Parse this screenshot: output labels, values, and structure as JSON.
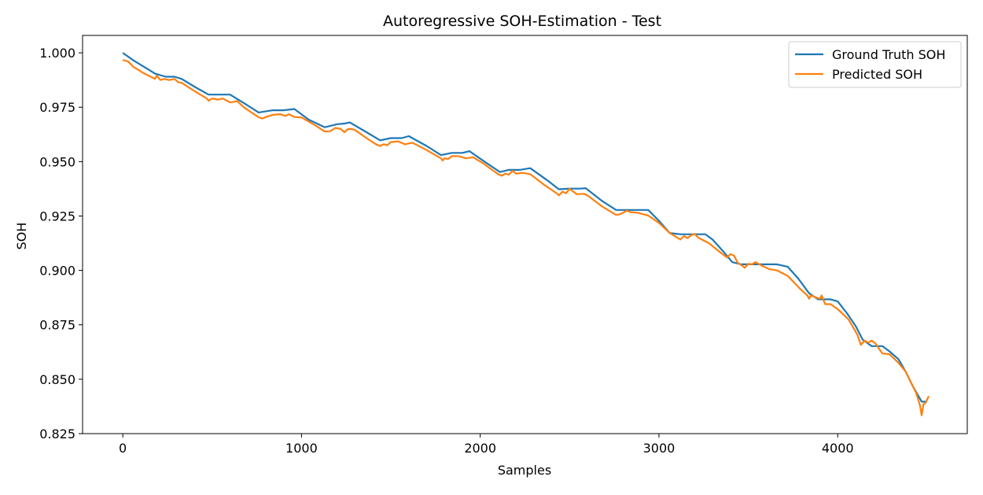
{
  "chart_data": {
    "type": "line",
    "title": "Autoregressive SOH-Estimation - Test",
    "xlabel": "Samples",
    "ylabel": "SOH",
    "xlim": [
      -225,
      4725
    ],
    "ylim": [
      0.825,
      1.008
    ],
    "xticks": [
      0,
      1000,
      2000,
      3000,
      4000
    ],
    "xtick_labels": [
      "0",
      "1000",
      "2000",
      "3000",
      "4000"
    ],
    "yticks": [
      0.825,
      0.85,
      0.875,
      0.9,
      0.925,
      0.95,
      0.975,
      1.0
    ],
    "ytick_labels": [
      "0.825",
      "0.850",
      "0.875",
      "0.900",
      "0.925",
      "0.950",
      "0.975",
      "1.000"
    ],
    "grid": false,
    "legend_position": "upper right",
    "series": [
      {
        "name": "Ground Truth SOH",
        "color": "#1f77b4",
        "x": [
          0,
          60,
          120,
          180,
          240,
          290,
          330,
          400,
          480,
          530,
          600,
          680,
          760,
          840,
          900,
          960,
          1040,
          1130,
          1200,
          1240,
          1270,
          1360,
          1440,
          1500,
          1560,
          1600,
          1700,
          1780,
          1840,
          1900,
          1940,
          2020,
          2110,
          2160,
          2220,
          2280,
          2370,
          2440,
          2500,
          2560,
          2590,
          2680,
          2760,
          2820,
          2880,
          2940,
          3000,
          3060,
          3120,
          3180,
          3260,
          3300,
          3360,
          3410,
          3460,
          3520,
          3580,
          3660,
          3720,
          3780,
          3840,
          3890,
          3960,
          4000,
          4050,
          4100,
          4140,
          4190,
          4250,
          4290,
          4340,
          4380,
          4420,
          4470,
          4500
        ],
        "y": [
          1.0,
          0.9965,
          0.9935,
          0.9905,
          0.989,
          0.989,
          0.988,
          0.9845,
          0.9808,
          0.9808,
          0.9808,
          0.9768,
          0.9726,
          0.9736,
          0.9736,
          0.9742,
          0.9693,
          0.9658,
          0.9672,
          0.9675,
          0.968,
          0.9637,
          0.9598,
          0.9608,
          0.9608,
          0.9617,
          0.9572,
          0.953,
          0.954,
          0.954,
          0.9548,
          0.9502,
          0.9452,
          0.9462,
          0.9462,
          0.947,
          0.9417,
          0.9373,
          0.9376,
          0.9376,
          0.9378,
          0.932,
          0.9278,
          0.9278,
          0.9278,
          0.9278,
          0.9228,
          0.9172,
          0.9166,
          0.9166,
          0.9166,
          0.9142,
          0.9087,
          0.9038,
          0.9028,
          0.9028,
          0.9028,
          0.9028,
          0.9017,
          0.8962,
          0.8895,
          0.8867,
          0.8867,
          0.8858,
          0.8805,
          0.8745,
          0.8682,
          0.8652,
          0.8652,
          0.8628,
          0.8592,
          0.8535,
          0.8468,
          0.8397,
          0.8397
        ]
      },
      {
        "name": "Predicted SOH",
        "color": "#ff7f0e",
        "x": [
          0,
          30,
          60,
          120,
          180,
          190,
          210,
          230,
          260,
          290,
          310,
          330,
          400,
          470,
          480,
          500,
          530,
          560,
          600,
          640,
          680,
          760,
          780,
          800,
          840,
          880,
          910,
          930,
          960,
          1000,
          1080,
          1130,
          1160,
          1190,
          1220,
          1240,
          1260,
          1280,
          1300,
          1360,
          1420,
          1440,
          1460,
          1480,
          1500,
          1540,
          1580,
          1620,
          1700,
          1780,
          1790,
          1800,
          1820,
          1840,
          1880,
          1920,
          1960,
          2020,
          2100,
          2120,
          2140,
          2160,
          2180,
          2200,
          2240,
          2280,
          2360,
          2430,
          2440,
          2460,
          2480,
          2500,
          2540,
          2580,
          2600,
          2680,
          2760,
          2780,
          2800,
          2820,
          2840,
          2880,
          2940,
          3000,
          3060,
          3120,
          3140,
          3160,
          3180,
          3200,
          3220,
          3240,
          3280,
          3340,
          3380,
          3400,
          3420,
          3440,
          3460,
          3480,
          3500,
          3520,
          3540,
          3580,
          3620,
          3660,
          3720,
          3790,
          3830,
          3840,
          3850,
          3880,
          3900,
          3910,
          3930,
          3960,
          4000,
          4060,
          4110,
          4130,
          4150,
          4170,
          4190,
          4210,
          4250,
          4290,
          4340,
          4380,
          4410,
          4440,
          4460,
          4470,
          4480,
          4490,
          4510
        ],
        "y": [
          0.9967,
          0.996,
          0.9935,
          0.9905,
          0.988,
          0.9895,
          0.9875,
          0.988,
          0.9875,
          0.988,
          0.9865,
          0.9862,
          0.9825,
          0.979,
          0.978,
          0.979,
          0.9785,
          0.979,
          0.9772,
          0.9778,
          0.9748,
          0.9704,
          0.9698,
          0.9705,
          0.9715,
          0.9718,
          0.971,
          0.9718,
          0.9705,
          0.9703,
          0.9665,
          0.9638,
          0.964,
          0.9655,
          0.965,
          0.9635,
          0.965,
          0.965,
          0.9645,
          0.961,
          0.9578,
          0.9572,
          0.958,
          0.9575,
          0.959,
          0.9593,
          0.958,
          0.9587,
          0.9553,
          0.9515,
          0.9505,
          0.9515,
          0.9512,
          0.9525,
          0.9525,
          0.9515,
          0.952,
          0.949,
          0.9442,
          0.9435,
          0.9445,
          0.944,
          0.9458,
          0.9445,
          0.9448,
          0.9442,
          0.9392,
          0.9353,
          0.9345,
          0.9362,
          0.9355,
          0.9375,
          0.935,
          0.9352,
          0.9345,
          0.9295,
          0.9255,
          0.9258,
          0.9265,
          0.9275,
          0.9268,
          0.9265,
          0.9252,
          0.9218,
          0.9172,
          0.9142,
          0.9158,
          0.9148,
          0.9162,
          0.9168,
          0.915,
          0.9142,
          0.9125,
          0.9085,
          0.906,
          0.9075,
          0.9068,
          0.9035,
          0.9025,
          0.9012,
          0.903,
          0.9028,
          0.9038,
          0.902,
          0.9005,
          0.9,
          0.8975,
          0.8915,
          0.8885,
          0.887,
          0.8885,
          0.8875,
          0.887,
          0.8885,
          0.8845,
          0.8845,
          0.8822,
          0.8775,
          0.8705,
          0.8658,
          0.8678,
          0.8668,
          0.8678,
          0.8665,
          0.8618,
          0.8615,
          0.8575,
          0.8535,
          0.8485,
          0.8435,
          0.838,
          0.8334,
          0.8385,
          0.839,
          0.8422
        ]
      }
    ]
  }
}
